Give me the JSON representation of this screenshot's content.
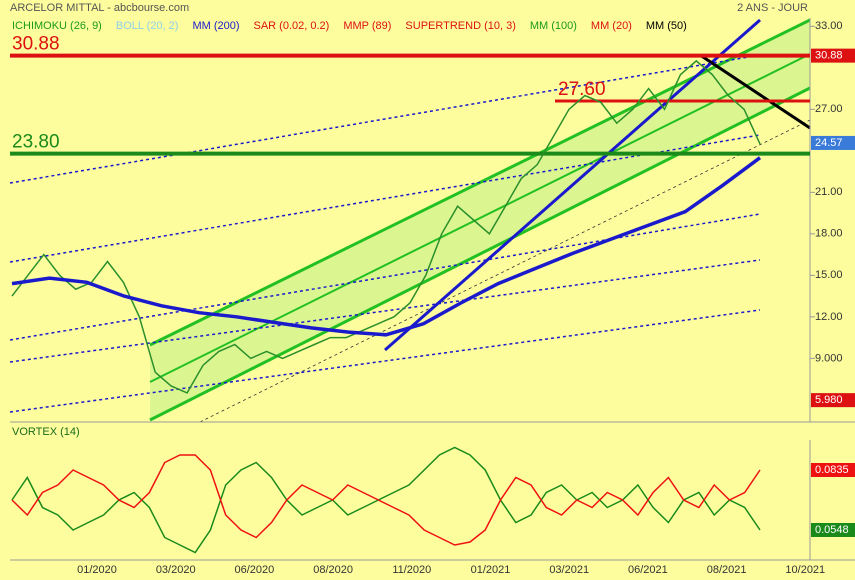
{
  "chart_data": [
    {
      "type": "line",
      "title": "ARCELOR MITTAL - abcbourse.com",
      "subtitle": "2 ANS - JOUR",
      "ylim": [
        4.4,
        33.6
      ],
      "yticks": [
        {
          "value": 33,
          "label": "33.00"
        },
        {
          "value": 27,
          "label": "27.00"
        },
        {
          "value": 21,
          "label": "21.00"
        },
        {
          "value": 18,
          "label": "18.00"
        },
        {
          "value": 15,
          "label": "15.00"
        },
        {
          "value": 12,
          "label": "12.00"
        },
        {
          "value": 9,
          "label": "9.000"
        }
      ],
      "series": [
        {
          "name": "ICHIMOKU (26, 9)",
          "color": "#1a9a1a"
        },
        {
          "name": "BOLL (20, 2)",
          "color": "#8fd0e8"
        },
        {
          "name": "MM (200)",
          "color": "#1a1acc",
          "values": [
            14.4,
            14.8,
            14.5,
            13.5,
            12.8,
            12.3,
            12,
            11.6,
            11.2,
            10.9,
            10.7,
            11.5,
            13,
            14.4,
            15.5,
            16.6,
            17.6,
            18.6,
            19.6,
            21.5,
            23.5
          ]
        },
        {
          "name": "SAR (0.02, 0.2)",
          "color": "#dd1111"
        },
        {
          "name": "MMP (89)",
          "color": "#dd1111"
        },
        {
          "name": "SUPERTREND (10, 3)",
          "color": "#dd1111"
        },
        {
          "name": "MM (100)",
          "color": "#1a9a1a"
        },
        {
          "name": "MM (20)",
          "color": "#dd1111"
        },
        {
          "name": "MM (50)",
          "color": "#000000"
        }
      ],
      "price": {
        "color": "#2b8f2b",
        "values": [
          13.5,
          15,
          16.5,
          15,
          14,
          14.5,
          16,
          14.5,
          12,
          8,
          7,
          6.5,
          8.5,
          9.5,
          10,
          9,
          9.5,
          9,
          9.5,
          10,
          10.5,
          10.5,
          11,
          11.5,
          12,
          13,
          15,
          18,
          20,
          19,
          18,
          20,
          22,
          23,
          25,
          27,
          28,
          27.5,
          26,
          27,
          28.5,
          27,
          29.5,
          30.5,
          29.5,
          28,
          27,
          24.5
        ]
      },
      "hlines": [
        {
          "value": 30.88,
          "label": "30.88",
          "color": "#dd1111"
        },
        {
          "value": 27.6,
          "label": "27.60",
          "color": "#dd1111"
        },
        {
          "value": 23.8,
          "label": "23.80",
          "color": "#1a8a1a"
        }
      ],
      "price_labels": [
        {
          "value": 30.88,
          "label": "30.88",
          "color": "#dd1111"
        },
        {
          "value": 24.57,
          "label": "24.57",
          "color": "#3a7ad8"
        },
        {
          "value": 5.98,
          "label": "5.980",
          "color": "#dd1111"
        }
      ]
    },
    {
      "type": "line",
      "title": "VORTEX (14)",
      "ylim": [
        0.6,
        1.4
      ],
      "series": [
        {
          "color": "#1a8a1a",
          "values": [
            1.0,
            1.15,
            0.95,
            0.9,
            0.8,
            0.85,
            0.9,
            1.0,
            1.05,
            0.95,
            0.75,
            0.7,
            0.65,
            0.8,
            1.1,
            1.2,
            1.25,
            1.15,
            1.0,
            0.9,
            0.95,
            1.0,
            0.9,
            0.95,
            1.0,
            1.05,
            1.1,
            1.2,
            1.3,
            1.35,
            1.3,
            1.2,
            1.0,
            0.85,
            0.9,
            1.05,
            1.1,
            1.0,
            1.05,
            0.95,
            1.0,
            1.1,
            0.95,
            0.85,
            1.0,
            1.05,
            0.9,
            1.0,
            0.95,
            0.8
          ]
        },
        {
          "color": "#ee1111",
          "values": [
            1.0,
            0.9,
            1.05,
            1.1,
            1.2,
            1.15,
            1.1,
            1.0,
            0.95,
            1.05,
            1.25,
            1.3,
            1.3,
            1.2,
            0.9,
            0.8,
            0.75,
            0.85,
            1.0,
            1.1,
            1.05,
            1.0,
            1.1,
            1.05,
            1.0,
            0.95,
            0.9,
            0.8,
            0.75,
            0.7,
            0.72,
            0.8,
            1.0,
            1.15,
            1.1,
            0.95,
            0.9,
            1.0,
            0.95,
            1.05,
            1.0,
            0.9,
            1.05,
            1.15,
            1.0,
            0.95,
            1.1,
            1.0,
            1.05,
            1.2
          ]
        }
      ],
      "last_labels": [
        {
          "value": 0.0835,
          "label": "0.0835",
          "color": "#ee1111"
        },
        {
          "value": 0.0548,
          "label": "0.0548",
          "color": "#1a8a1a"
        }
      ],
      "x_labels": [
        "01/2020",
        "03/2020",
        "06/2020",
        "08/2020",
        "11/2020",
        "01/2021",
        "03/2021",
        "06/2021",
        "08/2021",
        "10/2021"
      ]
    }
  ]
}
